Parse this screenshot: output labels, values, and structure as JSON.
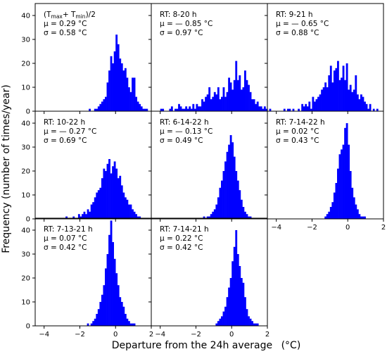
{
  "figure": {
    "ylabel": "Frequency (number of times/year)",
    "xlabel": "Departure from the 24h average",
    "xlabel_unit": "(°C)"
  },
  "chart_data": [
    {
      "type": "bar",
      "label_lines": [
        "",
        "μ = 0.29 °C",
        "σ = 0.58 °C"
      ],
      "label_title_parts": [
        "(T",
        "max",
        "+ T",
        "min",
        ")/2"
      ],
      "xlim": [
        -4.5,
        2.0
      ],
      "ylim": [
        0,
        45
      ],
      "yticks": [
        0,
        10,
        20,
        30,
        40
      ],
      "xticks": [
        -4,
        -2,
        0,
        2
      ],
      "bins": {
        "start": -1.5,
        "width": 0.1,
        "counts": [
          1,
          0,
          0,
          1,
          1,
          2,
          3,
          4,
          5,
          6,
          12,
          17,
          23,
          20,
          25,
          32,
          28,
          22,
          20,
          17,
          18,
          14,
          10,
          8,
          14,
          14,
          6,
          4,
          3,
          2,
          1,
          1,
          1
        ]
      }
    },
    {
      "type": "bar",
      "label_lines": [
        "RT:  8-20 h",
        "μ = — 0.85 °C",
        "σ = 0.97 °C"
      ],
      "xlim": [
        -4.5,
        2.0
      ],
      "ylim": [
        0,
        45
      ],
      "yticks": [
        0,
        10,
        20,
        30,
        40
      ],
      "xticks": [
        -4,
        -2,
        0,
        2
      ],
      "bins": {
        "start": -4.0,
        "width": 0.1,
        "counts": [
          1,
          1,
          0,
          0,
          0,
          1,
          2,
          0,
          1,
          1,
          3,
          2,
          1,
          1,
          2,
          1,
          2,
          1,
          3,
          1,
          3,
          2,
          2,
          5,
          4,
          6,
          7,
          10,
          5,
          6,
          8,
          7,
          10,
          5,
          6,
          10,
          6,
          8,
          14,
          12,
          9,
          13,
          21,
          13,
          15,
          9,
          10,
          17,
          13,
          11,
          8,
          5,
          5,
          3,
          4,
          2,
          2,
          1,
          2,
          1,
          0,
          1
        ]
      }
    },
    {
      "type": "bar",
      "label_lines": [
        "RT:  9-21 h",
        "μ = — 0.65 °C",
        "σ = 0.88 °C"
      ],
      "xlim": [
        -4.5,
        2.0
      ],
      "ylim": [
        0,
        45
      ],
      "yticks": [
        0,
        10,
        20,
        30,
        40
      ],
      "xticks": [
        -4,
        -2,
        0,
        2
      ],
      "bins": {
        "start": -3.6,
        "width": 0.1,
        "counts": [
          1,
          0,
          1,
          1,
          0,
          1,
          0,
          0,
          1,
          0,
          3,
          2,
          3,
          2,
          4,
          1,
          6,
          4,
          5,
          6,
          7,
          9,
          10,
          12,
          10,
          15,
          19,
          12,
          17,
          18,
          21,
          13,
          14,
          19,
          13,
          20,
          9,
          11,
          8,
          9,
          15,
          7,
          5,
          7,
          6,
          4,
          3,
          1,
          3,
          0,
          1,
          0,
          1
        ]
      }
    },
    {
      "type": "bar",
      "label_lines": [
        "RT:  10-22 h",
        "μ = — 0.27 °C",
        "σ = 0.69 °C"
      ],
      "xlim": [
        -4.5,
        2.0
      ],
      "ylim": [
        0,
        45
      ],
      "yticks": [
        0,
        10,
        20,
        30,
        40
      ],
      "xticks": [
        -4,
        -2,
        0,
        2
      ],
      "bins": {
        "start": -2.8,
        "width": 0.1,
        "counts": [
          1,
          0,
          0,
          0,
          1,
          0,
          0,
          2,
          1,
          2,
          3,
          2,
          4,
          3,
          6,
          7,
          9,
          11,
          12,
          13,
          17,
          21,
          20,
          23,
          25,
          19,
          22,
          24,
          21,
          17,
          18,
          14,
          11,
          9,
          8,
          6,
          6,
          4,
          3,
          2,
          1,
          1
        ]
      }
    },
    {
      "type": "bar",
      "label_lines": [
        "RT:  6-14-22 h",
        "μ = — 0.13 °C",
        "σ = 0.49 °C"
      ],
      "xlim": [
        -4.5,
        2.0
      ],
      "ylim": [
        0,
        45
      ],
      "yticks": [
        0,
        10,
        20,
        30,
        40
      ],
      "xticks": [
        -4,
        -2,
        0,
        2
      ],
      "bins": {
        "start": -1.6,
        "width": 0.1,
        "counts": [
          1,
          0,
          1,
          1,
          2,
          3,
          4,
          6,
          9,
          13,
          16,
          20,
          24,
          28,
          31,
          35,
          32,
          26,
          20,
          16,
          12,
          8,
          5,
          3,
          2,
          1,
          1
        ]
      }
    },
    {
      "type": "bar",
      "label_lines": [
        "RT:  7-14-22 h",
        "μ = 0.02 °C",
        "σ = 0.43 °C"
      ],
      "xlim": [
        -4.5,
        2.0
      ],
      "ylim": [
        0,
        45
      ],
      "yticks": [
        0,
        10,
        20,
        30,
        40
      ],
      "xticks": [
        -4,
        -2,
        0,
        2
      ],
      "bins": {
        "start": -1.3,
        "width": 0.1,
        "counts": [
          1,
          2,
          3,
          5,
          7,
          11,
          15,
          21,
          27,
          29,
          31,
          38,
          40,
          31,
          20,
          13,
          9,
          6,
          4,
          2,
          1,
          1,
          1
        ]
      }
    },
    {
      "type": "bar",
      "label_lines": [
        "RT:  7-13-21 h",
        "μ = 0.07 °C",
        "σ = 0.42 °C"
      ],
      "xlim": [
        -4.5,
        2.0
      ],
      "ylim": [
        0,
        45
      ],
      "yticks": [
        0,
        10,
        20,
        30,
        40
      ],
      "xticks": [
        -4,
        -2,
        0,
        2
      ],
      "bins": {
        "start": -1.6,
        "width": 0.1,
        "counts": [
          1,
          0,
          1,
          2,
          3,
          5,
          7,
          10,
          13,
          17,
          24,
          30,
          38,
          44,
          35,
          28,
          22,
          17,
          12,
          10,
          8,
          5,
          3,
          2,
          1,
          1,
          1
        ]
      }
    },
    {
      "type": "bar",
      "label_lines": [
        "RT:  7-14-21 h",
        "μ = 0.22 °C",
        "σ = 0.42 °C"
      ],
      "xlim": [
        -4.5,
        2.0
      ],
      "ylim": [
        0,
        45
      ],
      "yticks": [
        0,
        10,
        20,
        30,
        40
      ],
      "xticks": [
        -4,
        -2,
        0,
        2
      ],
      "bins": {
        "start": -0.9,
        "width": 0.1,
        "counts": [
          1,
          2,
          3,
          4,
          6,
          8,
          12,
          16,
          20,
          27,
          33,
          40,
          30,
          25,
          20,
          18,
          12,
          7,
          4,
          3,
          2,
          1,
          1,
          1
        ]
      }
    }
  ]
}
